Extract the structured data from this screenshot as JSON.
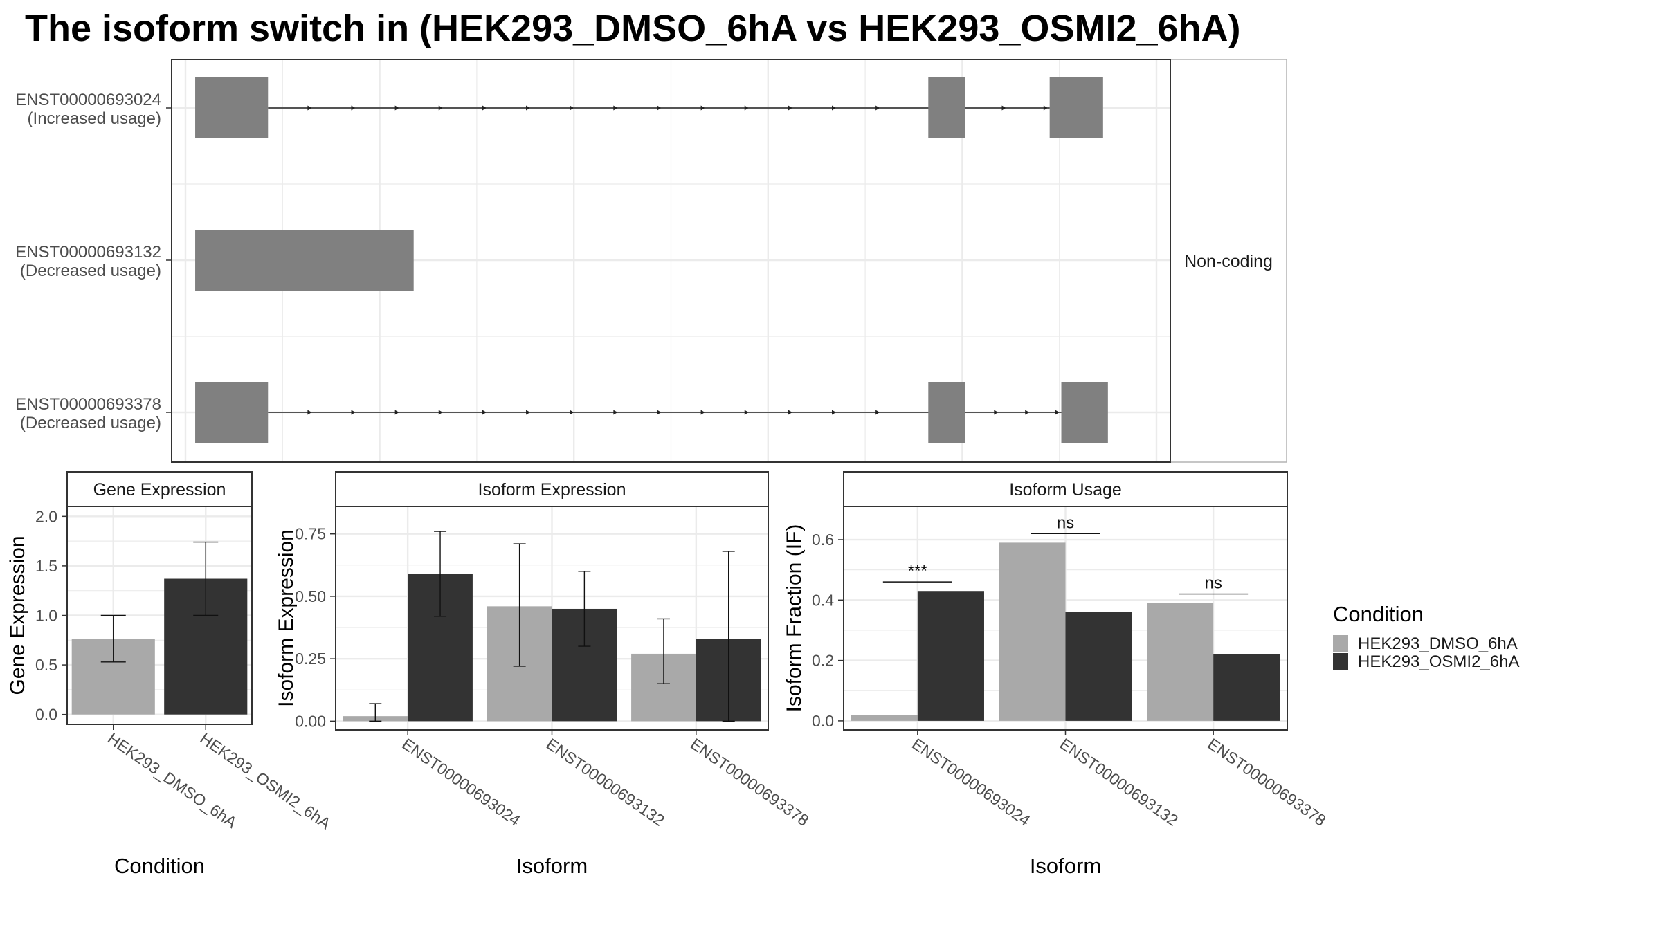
{
  "title": "The isoform switch in  (HEK293_DMSO_6hA vs HEK293_OSMI2_6hA)",
  "colors": {
    "dmso": "#a9a9a9",
    "osmi2": "#333333",
    "exon": "#808080",
    "grid": "#ebebeb",
    "strip": "#ffffff"
  },
  "chart_data": [
    {
      "type": "gene-structure",
      "facet_label": "Non-coding",
      "x_range": [
        0,
        100
      ],
      "transcripts": [
        {
          "id": "ENST00000693024",
          "usage": "(Increased usage)",
          "exons": [
            [
              1,
              8.5
            ],
            [
              76.5,
              80.3
            ],
            [
              89,
              94.5
            ]
          ],
          "intron_arrows": [
            13,
            17.5,
            22,
            26.5,
            31,
            35.5,
            40,
            44.5,
            49,
            53.5,
            58,
            62.5,
            67,
            71.5,
            84.5,
            88.8
          ]
        },
        {
          "id": "ENST00000693132",
          "usage": "(Decreased usage)",
          "exons": [
            [
              1,
              23.5
            ]
          ],
          "intron_arrows": []
        },
        {
          "id": "ENST00000693378",
          "usage": "(Decreased usage)",
          "exons": [
            [
              1,
              8.5
            ],
            [
              76.5,
              80.3
            ],
            [
              90.2,
              95
            ]
          ],
          "intron_arrows": [
            13,
            17.5,
            22,
            26.5,
            31,
            35.5,
            40,
            44.5,
            49,
            53.5,
            58,
            62.5,
            67,
            71.5,
            83.7,
            86.9,
            90
          ]
        }
      ]
    },
    {
      "type": "bar",
      "panel_title": "Gene Expression",
      "xlabel": "Condition",
      "ylabel": "Gene Expression",
      "ylim": [
        -0.1,
        2.1
      ],
      "yticks": [
        0.0,
        0.5,
        1.0,
        1.5,
        2.0
      ],
      "ytick_labels": [
        "0.0",
        "0.5",
        "1.0",
        "1.5",
        "2.0"
      ],
      "categories": [
        "HEK293_DMSO_6hA",
        "HEK293_OSMI2_6hA"
      ],
      "bars": [
        {
          "category": "HEK293_DMSO_6hA",
          "condition": "dmso",
          "value": 0.76,
          "err": [
            0.53,
            1.0
          ]
        },
        {
          "category": "HEK293_OSMI2_6hA",
          "condition": "osmi2",
          "value": 1.37,
          "err": [
            1.0,
            1.74
          ]
        }
      ]
    },
    {
      "type": "bar",
      "panel_title": "Isoform Expression",
      "xlabel": "Isoform",
      "ylabel": "Isoform Expression",
      "ylim": [
        -0.035,
        0.86
      ],
      "yticks": [
        0.0,
        0.25,
        0.5,
        0.75
      ],
      "ytick_labels": [
        "0.00",
        "0.25",
        "0.50",
        "0.75"
      ],
      "categories": [
        "ENST00000693024",
        "ENST00000693132",
        "ENST00000693378"
      ],
      "series": [
        {
          "name": "HEK293_DMSO_6hA",
          "values": [
            0.02,
            0.46,
            0.27
          ],
          "err_low": [
            0.0,
            0.22,
            0.15
          ],
          "err_high": [
            0.07,
            0.71,
            0.41
          ]
        },
        {
          "name": "HEK293_OSMI2_6hA",
          "values": [
            0.59,
            0.45,
            0.33
          ],
          "err_low": [
            0.42,
            0.3,
            0.0
          ],
          "err_high": [
            0.76,
            0.6,
            0.68
          ]
        }
      ]
    },
    {
      "type": "bar",
      "panel_title": "Isoform Usage",
      "xlabel": "Isoform",
      "ylabel": "Isoform Fraction (IF)",
      "ylim": [
        -0.03,
        0.71
      ],
      "yticks": [
        0.0,
        0.2,
        0.4,
        0.6
      ],
      "ytick_labels": [
        "0.0",
        "0.2",
        "0.4",
        "0.6"
      ],
      "categories": [
        "ENST00000693024",
        "ENST00000693132",
        "ENST00000693378"
      ],
      "series": [
        {
          "name": "HEK293_DMSO_6hA",
          "values": [
            0.02,
            0.59,
            0.39
          ]
        },
        {
          "name": "HEK293_OSMI2_6hA",
          "values": [
            0.43,
            0.36,
            0.22
          ]
        }
      ],
      "significance": [
        {
          "category": "ENST00000693024",
          "label": "***",
          "y": 0.46
        },
        {
          "category": "ENST00000693132",
          "label": "ns",
          "y": 0.62
        },
        {
          "category": "ENST00000693378",
          "label": "ns",
          "y": 0.42
        }
      ]
    }
  ],
  "legend": {
    "title": "Condition",
    "placement": "right",
    "entries": [
      {
        "label": "HEK293_DMSO_6hA",
        "color": "#a9a9a9"
      },
      {
        "label": "HEK293_OSMI2_6hA",
        "color": "#333333"
      }
    ]
  }
}
